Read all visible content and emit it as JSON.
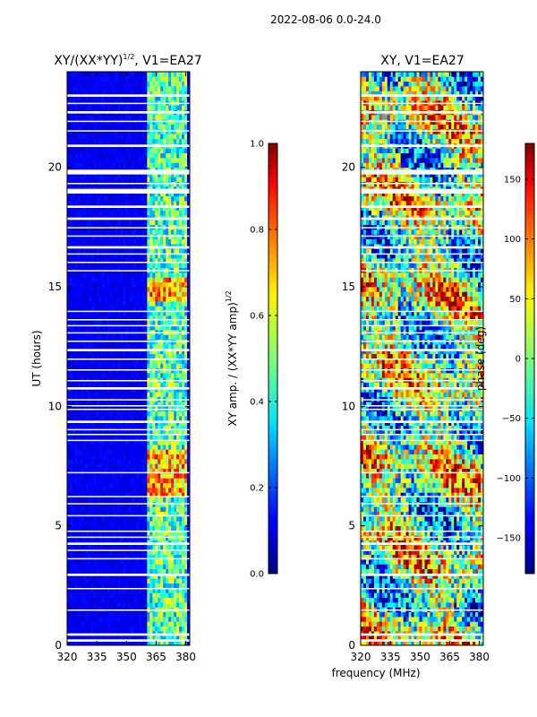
{
  "figure": {
    "suptitle": "2022-08-06 0.0-24.0",
    "xlabel": "frequency (MHz)"
  },
  "chart_data": [
    {
      "type": "heatmap",
      "title_main": "XY/(XX*YY)",
      "title_sup": "1/2",
      "title_suffix": ", V1=EA27",
      "xlabel": "",
      "ylabel": "UT (hours)",
      "xlim": [
        320,
        382
      ],
      "ylim": [
        0,
        24
      ],
      "xticks": [
        320,
        335,
        350,
        365,
        380
      ],
      "xtick_labels": [
        "320",
        "335",
        "350",
        "365",
        "380"
      ],
      "yticks": [
        0,
        5,
        10,
        15,
        20
      ],
      "ytick_labels": [
        "0",
        "5",
        "10",
        "15",
        "20"
      ],
      "colormap": "jet",
      "colorbar": {
        "label_main": "XY amp. / (XX*YY amp)",
        "label_sup": "1/2",
        "range": [
          0.0,
          1.0
        ],
        "ticks": [
          0.0,
          0.2,
          0.4,
          0.6,
          0.8,
          1.0
        ],
        "tick_labels": [
          "0.0",
          "0.2",
          "0.4",
          "0.6",
          "0.8",
          "1.0"
        ]
      },
      "description_values": {
        "background_level": 0.08,
        "active_band_mhz": [
          360,
          381
        ],
        "active_band_level": 0.45,
        "strong_rfi_hours": [
          [
            6.3,
            8.2
          ],
          [
            14.4,
            15.4
          ]
        ],
        "strong_rfi_level": 0.9
      }
    },
    {
      "type": "heatmap",
      "title": "XY, V1=EA27",
      "xlabel": "",
      "ylabel": "",
      "xlim": [
        320,
        382
      ],
      "ylim": [
        0,
        24
      ],
      "xticks": [
        320,
        335,
        350,
        365,
        380
      ],
      "xtick_labels": [
        "320",
        "335",
        "350",
        "365",
        "380"
      ],
      "yticks": [
        0,
        5,
        10,
        15,
        20
      ],
      "ytick_labels": [
        "0",
        "5",
        "10",
        "15",
        "20"
      ],
      "colormap": "jet",
      "colorbar": {
        "label": "phase (deg)",
        "range": [
          -180,
          180
        ],
        "ticks": [
          -150,
          -100,
          -50,
          0,
          50,
          100,
          150
        ],
        "tick_labels": [
          "−150",
          "−100",
          "−50",
          "0",
          "50",
          "100",
          "150"
        ]
      }
    }
  ],
  "flagged_bands_hours": [
    [
      0.15,
      0.25
    ],
    [
      0.4,
      0.5
    ],
    [
      1.45,
      1.5
    ],
    [
      2.35,
      2.4
    ],
    [
      2.9,
      3.0
    ],
    [
      3.6,
      3.65
    ],
    [
      3.95,
      4.0
    ],
    [
      4.2,
      4.3
    ],
    [
      4.5,
      4.55
    ],
    [
      4.75,
      4.8
    ],
    [
      5.4,
      5.45
    ],
    [
      5.9,
      5.95
    ],
    [
      6.2,
      6.25
    ],
    [
      7.2,
      7.25
    ],
    [
      8.55,
      8.6
    ],
    [
      8.8,
      8.85
    ],
    [
      9.0,
      9.05
    ],
    [
      9.3,
      9.4
    ],
    [
      9.85,
      9.9
    ],
    [
      10.0,
      10.05
    ],
    [
      10.25,
      10.3
    ],
    [
      10.7,
      10.8
    ],
    [
      11.05,
      11.1
    ],
    [
      11.5,
      11.55
    ],
    [
      11.95,
      12.0
    ],
    [
      12.3,
      12.4
    ],
    [
      12.7,
      12.75
    ],
    [
      13.05,
      13.1
    ],
    [
      13.35,
      13.4
    ],
    [
      13.6,
      13.65
    ],
    [
      13.95,
      14.0
    ],
    [
      15.65,
      15.7
    ],
    [
      16.0,
      16.05
    ],
    [
      16.35,
      16.4
    ],
    [
      16.6,
      16.7
    ],
    [
      17.1,
      17.15
    ],
    [
      17.45,
      17.5
    ],
    [
      17.8,
      17.9
    ],
    [
      18.3,
      18.4
    ],
    [
      18.9,
      19.1
    ],
    [
      19.3,
      19.35
    ],
    [
      19.7,
      19.9
    ],
    [
      20.85,
      20.95
    ],
    [
      21.5,
      21.55
    ],
    [
      21.9,
      21.95
    ],
    [
      22.25,
      22.35
    ],
    [
      22.65,
      22.7
    ],
    [
      22.95,
      23.05
    ]
  ],
  "colors": {
    "axis": "#000000",
    "background": "#ffffff",
    "flag": "#ffffff"
  }
}
